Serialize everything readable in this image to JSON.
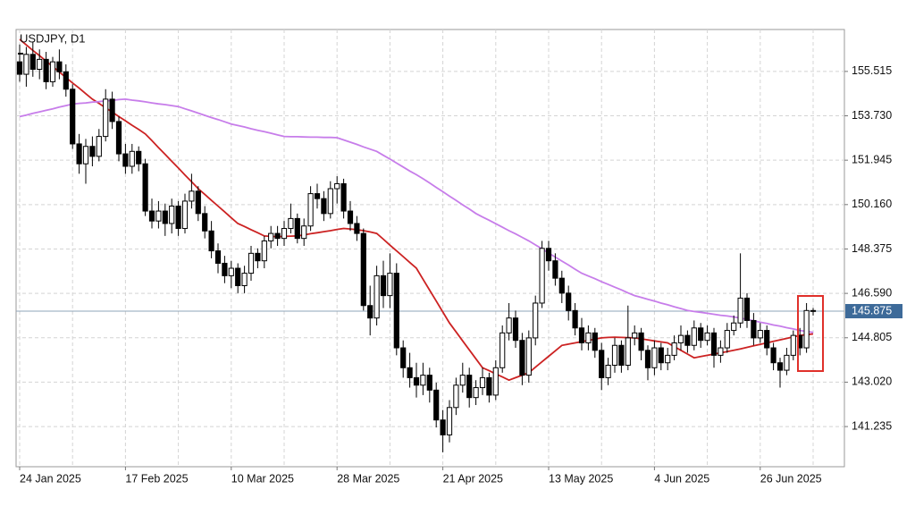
{
  "chart_data": {
    "type": "candlestick",
    "title": "USDJPY, D1",
    "categories": [
      "24 Jan 2025",
      null,
      null,
      null,
      null,
      null,
      null,
      null,
      null,
      null,
      null,
      null,
      null,
      null,
      null,
      null,
      "17 Feb 2025",
      null,
      null,
      null,
      null,
      null,
      null,
      null,
      null,
      null,
      null,
      null,
      null,
      null,
      null,
      null,
      "10 Mar 2025",
      null,
      null,
      null,
      null,
      null,
      null,
      null,
      null,
      null,
      null,
      null,
      null,
      null,
      null,
      null,
      "28 Mar 2025",
      null,
      null,
      null,
      null,
      null,
      null,
      null,
      null,
      null,
      null,
      null,
      null,
      null,
      null,
      null,
      "21 Apr 2025",
      null,
      null,
      null,
      null,
      null,
      null,
      null,
      null,
      null,
      null,
      null,
      null,
      null,
      null,
      null,
      "13 May 2025",
      null,
      null,
      null,
      null,
      null,
      null,
      null,
      null,
      null,
      null,
      null,
      null,
      null,
      null,
      null,
      "4 Jun 2025",
      null,
      null,
      null,
      null,
      null,
      null,
      null,
      null,
      null,
      null,
      null,
      null,
      null,
      null,
      null,
      "26 Jun 2025",
      null,
      null,
      null,
      null,
      null,
      null,
      null,
      null
    ],
    "ohlc": [
      [
        155.9,
        156.6,
        155.1,
        155.4
      ],
      [
        155.4,
        156.5,
        154.9,
        156.2
      ],
      [
        156.2,
        156.7,
        155.3,
        155.6
      ],
      [
        155.6,
        156.4,
        155.2,
        156.0
      ],
      [
        156.0,
        156.3,
        154.8,
        155.1
      ],
      [
        155.1,
        156.1,
        154.9,
        155.9
      ],
      [
        155.9,
        156.4,
        155.2,
        155.5
      ],
      [
        155.5,
        155.8,
        154.5,
        154.8
      ],
      [
        154.8,
        155.0,
        152.4,
        152.6
      ],
      [
        152.6,
        153.0,
        151.4,
        151.8
      ],
      [
        151.8,
        152.8,
        151.0,
        152.5
      ],
      [
        152.5,
        152.9,
        151.7,
        152.1
      ],
      [
        152.1,
        153.2,
        151.9,
        152.9
      ],
      [
        152.9,
        154.8,
        152.7,
        154.4
      ],
      [
        154.4,
        154.7,
        153.2,
        153.5
      ],
      [
        153.5,
        153.7,
        151.9,
        152.2
      ],
      [
        152.2,
        152.6,
        151.4,
        151.7
      ],
      [
        151.7,
        152.6,
        151.4,
        152.3
      ],
      [
        152.3,
        152.5,
        151.5,
        151.8
      ],
      [
        151.8,
        152.0,
        149.7,
        149.9
      ],
      [
        149.9,
        150.4,
        149.2,
        149.5
      ],
      [
        149.5,
        150.3,
        149.2,
        149.9
      ],
      [
        149.9,
        150.2,
        148.9,
        149.4
      ],
      [
        149.4,
        150.4,
        149.0,
        150.1
      ],
      [
        150.1,
        150.3,
        148.9,
        149.2
      ],
      [
        149.2,
        150.6,
        149.0,
        150.3
      ],
      [
        150.3,
        151.4,
        150.0,
        150.7
      ],
      [
        150.7,
        150.9,
        149.5,
        149.8
      ],
      [
        149.8,
        150.1,
        148.8,
        149.1
      ],
      [
        149.1,
        149.5,
        148.0,
        148.3
      ],
      [
        148.3,
        148.6,
        147.4,
        147.8
      ],
      [
        147.8,
        148.1,
        147.0,
        147.3
      ],
      [
        147.3,
        147.9,
        146.8,
        147.6
      ],
      [
        147.6,
        147.8,
        146.6,
        146.9
      ],
      [
        146.9,
        147.7,
        146.6,
        147.4
      ],
      [
        147.4,
        148.5,
        147.1,
        148.2
      ],
      [
        148.2,
        148.4,
        147.6,
        147.9
      ],
      [
        147.9,
        148.9,
        147.6,
        148.7
      ],
      [
        148.7,
        149.3,
        148.4,
        149.0
      ],
      [
        149.0,
        149.3,
        148.5,
        148.8
      ],
      [
        148.8,
        149.5,
        148.5,
        149.2
      ],
      [
        149.2,
        150.2,
        149.0,
        149.6
      ],
      [
        149.6,
        149.8,
        148.6,
        148.8
      ],
      [
        148.8,
        149.6,
        148.5,
        149.3
      ],
      [
        149.3,
        150.9,
        149.1,
        150.6
      ],
      [
        150.6,
        151.0,
        150.0,
        150.4
      ],
      [
        150.4,
        150.7,
        149.5,
        149.8
      ],
      [
        149.8,
        151.1,
        149.6,
        150.8
      ],
      [
        150.8,
        151.3,
        150.2,
        151.0
      ],
      [
        151.0,
        151.2,
        149.6,
        149.9
      ],
      [
        149.9,
        150.3,
        149.1,
        149.4
      ],
      [
        149.4,
        149.7,
        148.7,
        149.0
      ],
      [
        149.0,
        149.2,
        145.9,
        146.1
      ],
      [
        146.1,
        146.9,
        144.9,
        145.6
      ],
      [
        145.6,
        147.7,
        145.3,
        147.3
      ],
      [
        147.3,
        147.9,
        146.0,
        146.5
      ],
      [
        146.5,
        148.2,
        146.0,
        147.4
      ],
      [
        147.4,
        147.8,
        144.1,
        144.4
      ],
      [
        144.4,
        144.7,
        143.2,
        143.6
      ],
      [
        143.6,
        144.2,
        142.8,
        143.2
      ],
      [
        143.2,
        143.8,
        142.4,
        142.9
      ],
      [
        142.9,
        143.8,
        142.5,
        143.3
      ],
      [
        143.3,
        143.6,
        142.2,
        142.7
      ],
      [
        142.7,
        143.0,
        141.2,
        141.5
      ],
      [
        141.5,
        141.9,
        140.2,
        140.9
      ],
      [
        140.9,
        142.3,
        140.6,
        142.0
      ],
      [
        142.0,
        143.2,
        141.7,
        142.9
      ],
      [
        142.9,
        143.8,
        142.6,
        143.3
      ],
      [
        143.3,
        143.6,
        142.0,
        142.4
      ],
      [
        142.4,
        143.1,
        142.1,
        142.8
      ],
      [
        142.8,
        143.6,
        142.5,
        143.2
      ],
      [
        143.2,
        143.4,
        142.2,
        142.5
      ],
      [
        142.5,
        143.9,
        142.3,
        143.6
      ],
      [
        143.6,
        145.3,
        143.4,
        145.0
      ],
      [
        145.0,
        146.2,
        144.7,
        145.6
      ],
      [
        145.6,
        145.9,
        144.4,
        144.7
      ],
      [
        144.7,
        145.0,
        142.9,
        143.3
      ],
      [
        143.3,
        145.1,
        143.0,
        144.8
      ],
      [
        144.8,
        146.5,
        144.5,
        146.2
      ],
      [
        146.2,
        148.7,
        146.0,
        148.4
      ],
      [
        148.4,
        148.7,
        147.5,
        147.9
      ],
      [
        147.9,
        148.2,
        146.9,
        147.2
      ],
      [
        147.2,
        147.5,
        146.2,
        146.6
      ],
      [
        146.6,
        146.9,
        145.5,
        145.9
      ],
      [
        145.9,
        146.2,
        144.9,
        145.2
      ],
      [
        145.2,
        145.6,
        144.3,
        144.6
      ],
      [
        144.6,
        145.3,
        144.3,
        145.0
      ],
      [
        145.0,
        145.2,
        144.0,
        144.3
      ],
      [
        144.3,
        144.6,
        142.7,
        143.2
      ],
      [
        143.2,
        144.0,
        142.9,
        143.7
      ],
      [
        143.7,
        144.8,
        143.4,
        144.5
      ],
      [
        144.5,
        144.7,
        143.4,
        143.7
      ],
      [
        143.7,
        146.1,
        143.5,
        144.8
      ],
      [
        144.8,
        145.3,
        144.5,
        145.0
      ],
      [
        145.0,
        145.2,
        143.9,
        144.3
      ],
      [
        144.3,
        144.5,
        143.1,
        143.6
      ],
      [
        143.6,
        144.7,
        143.3,
        144.4
      ],
      [
        144.4,
        144.6,
        143.5,
        143.8
      ],
      [
        143.8,
        144.4,
        143.5,
        144.1
      ],
      [
        144.1,
        144.9,
        143.9,
        144.6
      ],
      [
        144.6,
        145.3,
        144.3,
        144.9
      ],
      [
        144.9,
        145.1,
        144.2,
        144.5
      ],
      [
        144.5,
        145.5,
        144.3,
        145.2
      ],
      [
        145.2,
        145.4,
        144.4,
        144.7
      ],
      [
        144.7,
        145.3,
        144.5,
        145.0
      ],
      [
        145.0,
        145.2,
        143.6,
        144.1
      ],
      [
        144.1,
        144.7,
        143.8,
        144.4
      ],
      [
        144.4,
        145.4,
        144.2,
        145.1
      ],
      [
        145.1,
        145.7,
        144.9,
        145.4
      ],
      [
        145.4,
        148.2,
        145.2,
        146.4
      ],
      [
        146.4,
        146.6,
        145.2,
        145.5
      ],
      [
        145.5,
        145.8,
        144.5,
        144.8
      ],
      [
        144.8,
        145.4,
        144.6,
        145.1
      ],
      [
        145.1,
        145.3,
        144.1,
        144.4
      ],
      [
        144.4,
        144.6,
        143.5,
        143.8
      ],
      [
        143.8,
        144.0,
        142.8,
        143.5
      ],
      [
        143.5,
        144.4,
        143.3,
        144.1
      ],
      [
        144.1,
        145.1,
        143.9,
        144.9
      ],
      [
        144.9,
        145.2,
        144.1,
        144.4
      ],
      [
        144.4,
        146.2,
        144.2,
        145.9
      ],
      [
        145.9,
        146.0,
        145.7,
        145.875
      ]
    ],
    "up_color": "#ffffff",
    "down_color": "#000000",
    "candle_outline": "#000000",
    "series": [
      {
        "color": "#cc2222",
        "values": [
          156.8,
          156.58,
          156.36,
          156.15,
          155.93,
          155.71,
          155.49,
          155.27,
          155.05,
          154.84,
          154.62,
          154.4,
          154.23,
          154.05,
          153.88,
          153.7,
          153.53,
          153.35,
          153.18,
          153.0,
          152.73,
          152.45,
          152.18,
          151.9,
          151.63,
          151.35,
          151.08,
          150.8,
          150.57,
          150.33,
          150.1,
          149.87,
          149.63,
          149.4,
          149.28,
          149.15,
          149.03,
          148.9,
          148.88,
          148.87,
          148.88,
          148.89,
          148.9,
          148.94,
          148.99,
          149.03,
          149.07,
          149.11,
          149.16,
          149.2,
          149.18,
          149.15,
          149.11,
          149.06,
          149.0,
          148.77,
          148.53,
          148.3,
          148.07,
          147.83,
          147.6,
          147.16,
          146.72,
          146.28,
          145.84,
          145.4,
          145.04,
          144.68,
          144.32,
          143.96,
          143.6,
          143.48,
          143.35,
          143.23,
          143.1,
          143.2,
          143.3,
          143.4,
          143.62,
          143.84,
          144.06,
          144.28,
          144.5,
          144.55,
          144.6,
          144.65,
          144.7,
          144.75,
          144.8,
          144.82,
          144.83,
          144.82,
          144.81,
          144.8,
          144.76,
          144.72,
          144.68,
          144.64,
          144.6,
          144.45,
          144.3,
          144.15,
          144.0,
          144.05,
          144.1,
          144.15,
          144.2,
          144.25,
          144.3,
          144.36,
          144.42,
          144.48,
          144.54,
          144.6,
          144.66,
          144.72,
          144.78,
          144.84,
          144.9,
          144.93,
          144.96
        ]
      },
      {
        "color": "#c77dea",
        "values": [
          153.7,
          153.76,
          153.83,
          153.89,
          153.95,
          154.01,
          154.08,
          154.14,
          154.2,
          154.23,
          154.25,
          154.28,
          154.3,
          154.33,
          154.35,
          154.38,
          154.4,
          154.36,
          154.33,
          154.29,
          154.25,
          154.21,
          154.18,
          154.14,
          154.1,
          154.01,
          153.93,
          153.84,
          153.75,
          153.66,
          153.58,
          153.49,
          153.4,
          153.34,
          153.28,
          153.21,
          153.15,
          153.09,
          153.03,
          152.96,
          152.9,
          152.89,
          152.89,
          152.88,
          152.87,
          152.87,
          152.86,
          152.86,
          152.85,
          152.76,
          152.67,
          152.58,
          152.48,
          152.39,
          152.3,
          152.14,
          151.99,
          151.83,
          151.67,
          151.51,
          151.36,
          151.2,
          151.03,
          150.85,
          150.68,
          150.5,
          150.33,
          150.15,
          149.98,
          149.8,
          149.66,
          149.53,
          149.39,
          149.25,
          149.11,
          148.98,
          148.84,
          148.7,
          148.54,
          148.38,
          148.21,
          148.05,
          147.89,
          147.73,
          147.56,
          147.4,
          147.29,
          147.18,
          147.06,
          146.95,
          146.84,
          146.73,
          146.61,
          146.5,
          146.43,
          146.35,
          146.28,
          146.2,
          146.13,
          146.05,
          145.98,
          145.9,
          145.86,
          145.83,
          145.79,
          145.75,
          145.71,
          145.68,
          145.64,
          145.6,
          145.54,
          145.49,
          145.43,
          145.38,
          145.32,
          145.27,
          145.21,
          145.16,
          145.1,
          145.06,
          145.02
        ]
      }
    ],
    "last_price": 145.875,
    "last_price_color": "#3d6a99",
    "ylim": [
      139.62,
      157.2
    ],
    "yticks": [
      141.235,
      {
        "value": 143.02,
        "label": "143.020"
      },
      144.805,
      {
        "value": 146.59,
        "label": "146.590"
      },
      148.375,
      {
        "value": 150.16,
        "label": "150.160"
      },
      151.945,
      {
        "value": 153.73,
        "label": "153.730"
      },
      155.515
    ],
    "grid": true
  }
}
